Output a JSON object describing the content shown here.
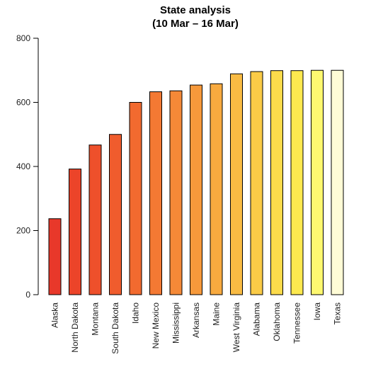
{
  "chart_data": {
    "type": "bar",
    "title": "State analysis",
    "subtitle": "(10 Mar – 16 Mar)",
    "xlabel": "",
    "ylabel": "",
    "ylim": [
      0,
      800
    ],
    "yticks": [
      0,
      200,
      400,
      600,
      800
    ],
    "grid": false,
    "categories": [
      "Alaska",
      "North Dakota",
      "Montana",
      "South Dakota",
      "Idaho",
      "New Mexico",
      "Mississippi",
      "Arkansas",
      "Maine",
      "West Virginia",
      "Alabama",
      "Oklahoma",
      "Tennessee",
      "Iowa",
      "Texas"
    ],
    "values": [
      237,
      392,
      467,
      500,
      600,
      633,
      636,
      654,
      658,
      689,
      696,
      699,
      699,
      700,
      700
    ],
    "colors": [
      "#e8382a",
      "#ec4429",
      "#ee502b",
      "#f05c2d",
      "#f26a2f",
      "#f47933",
      "#f58937",
      "#f6993b",
      "#f8aa3f",
      "#f9bb43",
      "#facb47",
      "#fcdb4b",
      "#fde94f",
      "#fef870",
      "#fffcd6"
    ]
  }
}
